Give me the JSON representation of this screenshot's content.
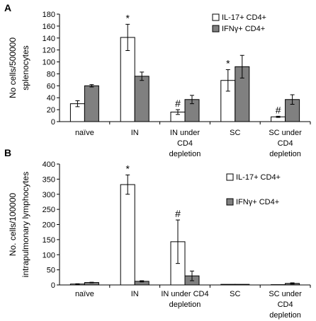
{
  "chart_data": [
    {
      "panel": "A",
      "type": "bar",
      "ylabel_lines": [
        "No cells/500000",
        "splenocytes"
      ],
      "ylim": [
        0,
        180
      ],
      "yticks": [
        0,
        20,
        40,
        60,
        80,
        100,
        120,
        140,
        160,
        180
      ],
      "categories": [
        [
          "naïve"
        ],
        [
          "IN"
        ],
        [
          "IN under",
          "CD4",
          "depletion"
        ],
        [
          "SC"
        ],
        [
          "SC under",
          "CD4",
          "depletion"
        ]
      ],
      "series": [
        {
          "name": "IL-17+ CD4+",
          "color": "#ffffff",
          "values": [
            30,
            141,
            16,
            69,
            8
          ],
          "errors": [
            5,
            22,
            4,
            18,
            1
          ]
        },
        {
          "name": "IFNγ+ CD4+",
          "color": "#808080",
          "values": [
            60,
            76,
            37,
            92,
            37
          ],
          "errors": [
            2,
            7,
            7,
            19,
            8
          ]
        }
      ],
      "annotations": [
        {
          "category": 1,
          "series": 0,
          "text": "*"
        },
        {
          "category": 2,
          "series": 0,
          "text": "#"
        },
        {
          "category": 3,
          "series": 0,
          "text": "*"
        },
        {
          "category": 4,
          "series": 0,
          "text": "#"
        }
      ],
      "legend_position": "top-right",
      "grid": false
    },
    {
      "panel": "B",
      "type": "bar",
      "ylabel_lines": [
        "No. cells/100000",
        "intrapulmonary lymphocytes"
      ],
      "ylim": [
        0,
        400
      ],
      "yticks": [
        0,
        50,
        100,
        150,
        200,
        250,
        300,
        350,
        400
      ],
      "categories": [
        [
          "naïve"
        ],
        [
          "IN"
        ],
        [
          "IN under CD4",
          "depletion"
        ],
        [
          "SC"
        ],
        [
          "SC under",
          "CD4",
          "depletion"
        ]
      ],
      "series": [
        {
          "name": "IL-17+ CD4+",
          "color": "#ffffff",
          "values": [
            3,
            332,
            143,
            2,
            1
          ],
          "errors": [
            1,
            32,
            72,
            0,
            0
          ]
        },
        {
          "name": "IFNγ+ CD4+",
          "color": "#808080",
          "values": [
            8,
            12,
            30,
            2,
            5
          ],
          "errors": [
            1,
            2,
            16,
            0,
            2
          ]
        }
      ],
      "annotations": [
        {
          "category": 1,
          "series": 0,
          "text": "*"
        },
        {
          "category": 2,
          "series": 0,
          "text": "#"
        }
      ],
      "legend_position": "top-right",
      "grid": false
    }
  ]
}
